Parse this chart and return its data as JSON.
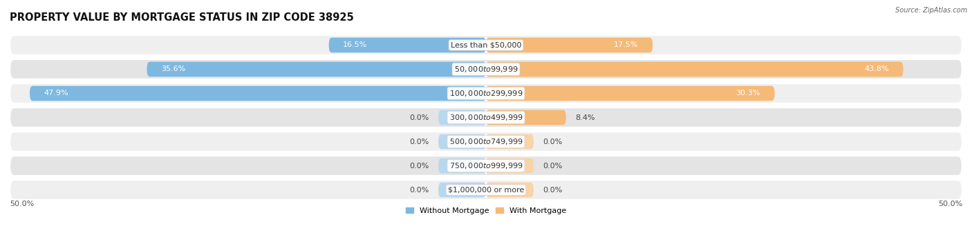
{
  "title": "PROPERTY VALUE BY MORTGAGE STATUS IN ZIP CODE 38925",
  "source": "Source: ZipAtlas.com",
  "categories": [
    "Less than $50,000",
    "$50,000 to $99,999",
    "$100,000 to $299,999",
    "$300,000 to $499,999",
    "$500,000 to $749,999",
    "$750,000 to $999,999",
    "$1,000,000 or more"
  ],
  "without_mortgage": [
    16.5,
    35.6,
    47.9,
    0.0,
    0.0,
    0.0,
    0.0
  ],
  "with_mortgage": [
    17.5,
    43.8,
    30.3,
    8.4,
    0.0,
    0.0,
    0.0
  ],
  "color_without": "#7eb8e0",
  "color_with": "#f5ba78",
  "color_without_light": "#b8d8ee",
  "color_with_light": "#f9d4a8",
  "row_bg_even": "#efefef",
  "row_bg_odd": "#e4e4e4",
  "xlim": 50.0,
  "legend_without": "Without Mortgage",
  "legend_with": "With Mortgage",
  "title_fontsize": 10.5,
  "label_fontsize": 8,
  "cat_fontsize": 8,
  "bar_height": 0.62,
  "stub_size": 5.0,
  "label_color_inside": "white",
  "label_color_outside": "#444444",
  "separator_color": "#ffffff"
}
